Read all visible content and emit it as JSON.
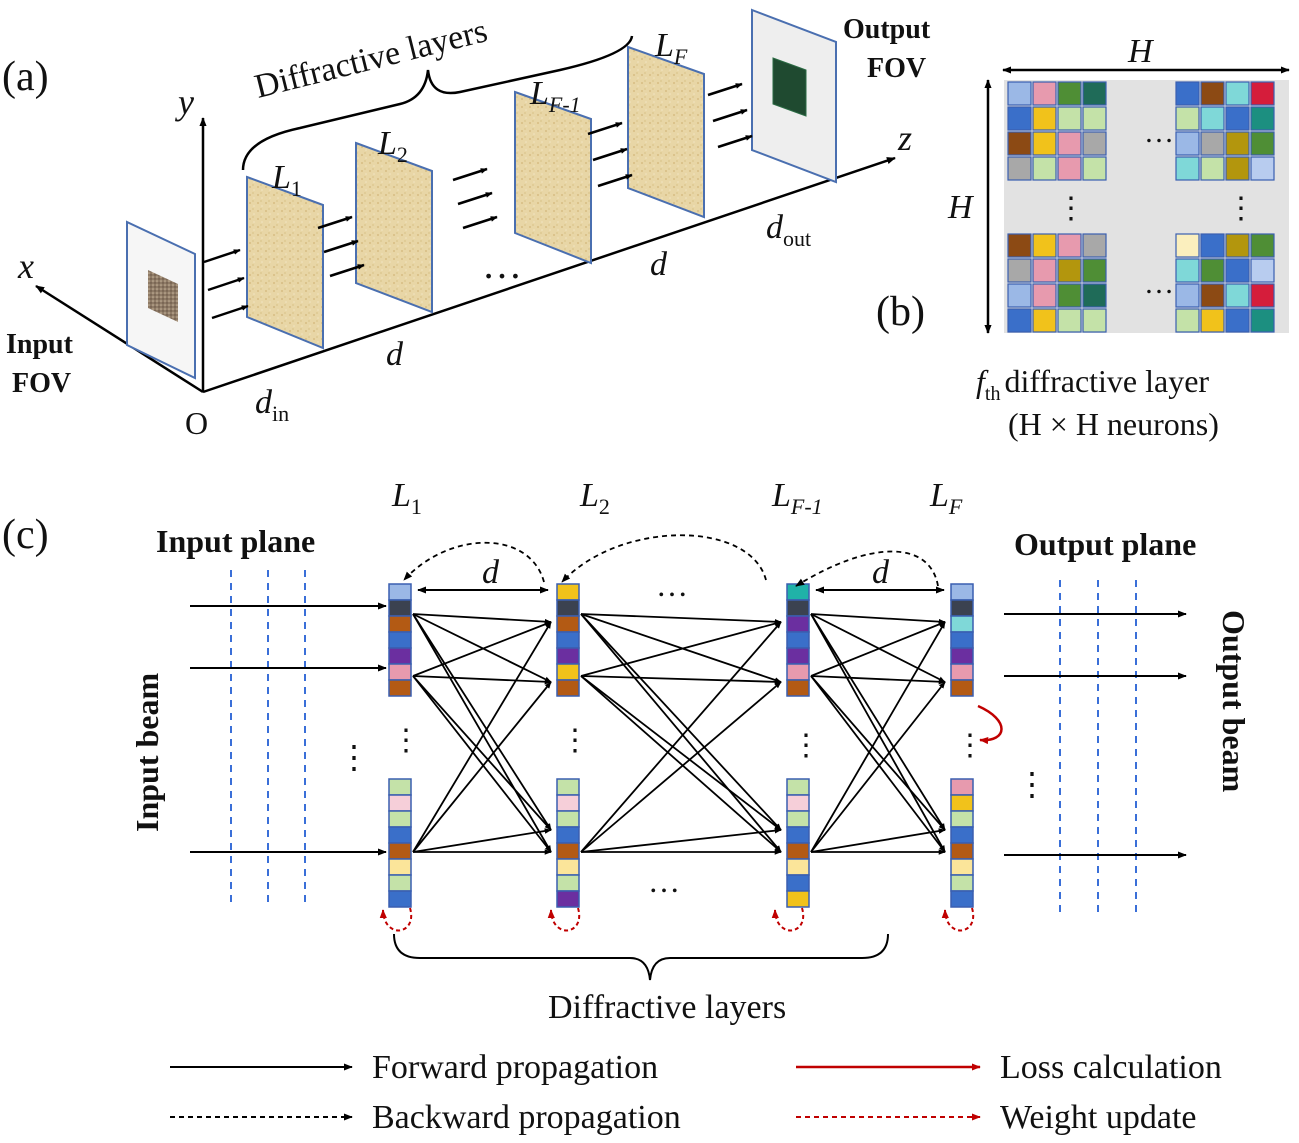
{
  "panel_a": {
    "label": "(a)",
    "axis_x": "x",
    "axis_y": "y",
    "axis_z": "z",
    "origin": "O",
    "input_fov_line1": "Input",
    "input_fov_line2": "FOV",
    "output_fov_line1": "Output",
    "output_fov_line2": "FOV",
    "brace_label": "Diffractive layers",
    "layer1": "L",
    "layer1_sub": "1",
    "layer2": "L",
    "layer2_sub": "2",
    "layerF1": "L",
    "layerF1_sub": "F-1",
    "layerF": "L",
    "layerF_sub": "F",
    "d_in": "d",
    "d_in_sub": "in",
    "d_label": "d",
    "d_out": "d",
    "d_out_sub": "out",
    "ellipsis": "…"
  },
  "panel_b": {
    "label": "(b)",
    "h_top": "H",
    "h_left": "H",
    "caption_f": "f",
    "caption_f_sub": "th",
    "caption_line1_rest": "diffractive layer",
    "caption_line2": "(H × H  neurons)",
    "dots_h": "…",
    "dots_v": "⋮",
    "colors": {
      "blue": "#3a6fc9",
      "lightblue": "#9bb8e6",
      "pink": "#e79aae",
      "green": "#4f8e35",
      "darkgreen": "#1f6b58",
      "yellow": "#f1c21b",
      "palegreen": "#c4e2a8",
      "brown": "#8c4a14",
      "gray": "#a8a8a8",
      "olive": "#b3960d",
      "cyan": "#7fd8d8",
      "red": "#d51d3b",
      "teal": "#1c8f80",
      "cream": "#fbefbe",
      "paleblue": "#b8ccef",
      "lightpink": "#f6cfd9"
    }
  },
  "panel_c": {
    "label": "(c)",
    "input_plane": "Input plane",
    "output_plane": "Output plane",
    "input_beam": "Input beam",
    "output_beam": "Output beam",
    "layer1": "L",
    "layer1_sub": "1",
    "layer2": "L",
    "layer2_sub": "2",
    "layerF1": "L",
    "layerF1_sub": "F-1",
    "layerF": "L",
    "layerF_sub": "F",
    "d_label": "d",
    "ellipsis": "…",
    "vdots": "⋮",
    "brace_label": "Diffractive layers"
  },
  "legend": {
    "forward": "Forward propagation",
    "backward": "Backward propagation",
    "loss": "Loss calculation",
    "weight": "Weight update",
    "black": "#000000",
    "red": "#c00000"
  }
}
